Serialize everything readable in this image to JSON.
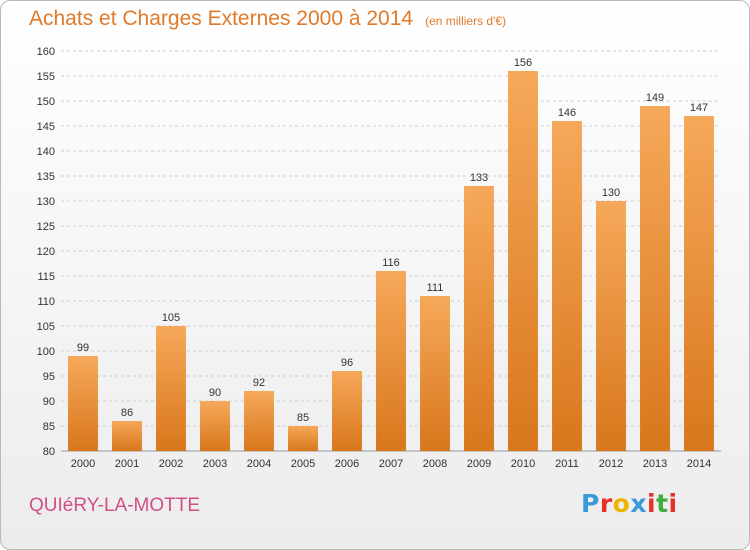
{
  "title": "Achats et Charges Externes 2000 à 2014",
  "unit": "(en milliers d'€)",
  "commune": "QUIéRY-LA-MOTTE",
  "logo": {
    "text": "Proxiti",
    "colors": [
      "#3a9ad9",
      "#e8302b",
      "#f0b400",
      "#3a9ad9",
      "#e8302b",
      "#3fae3f",
      "#e8302b"
    ]
  },
  "colors": {
    "bar_top": "#f6a85a",
    "bar_bottom": "#d8771c",
    "title": "#e07a2a",
    "commune": "#d24f86"
  },
  "chart_data": {
    "type": "bar",
    "categories": [
      "2000",
      "2001",
      "2002",
      "2003",
      "2004",
      "2005",
      "2006",
      "2007",
      "2008",
      "2009",
      "2010",
      "2011",
      "2012",
      "2013",
      "2014"
    ],
    "values": [
      99,
      86,
      105,
      90,
      92,
      85,
      96,
      116,
      111,
      133,
      156,
      146,
      130,
      149,
      147
    ],
    "title": "Achats et Charges Externes 2000 à 2014",
    "ylim": [
      80,
      160
    ],
    "yticks": [
      80,
      85,
      90,
      95,
      100,
      105,
      110,
      115,
      120,
      125,
      130,
      135,
      140,
      145,
      150,
      155,
      160
    ],
    "grid": true,
    "legend": "none"
  }
}
